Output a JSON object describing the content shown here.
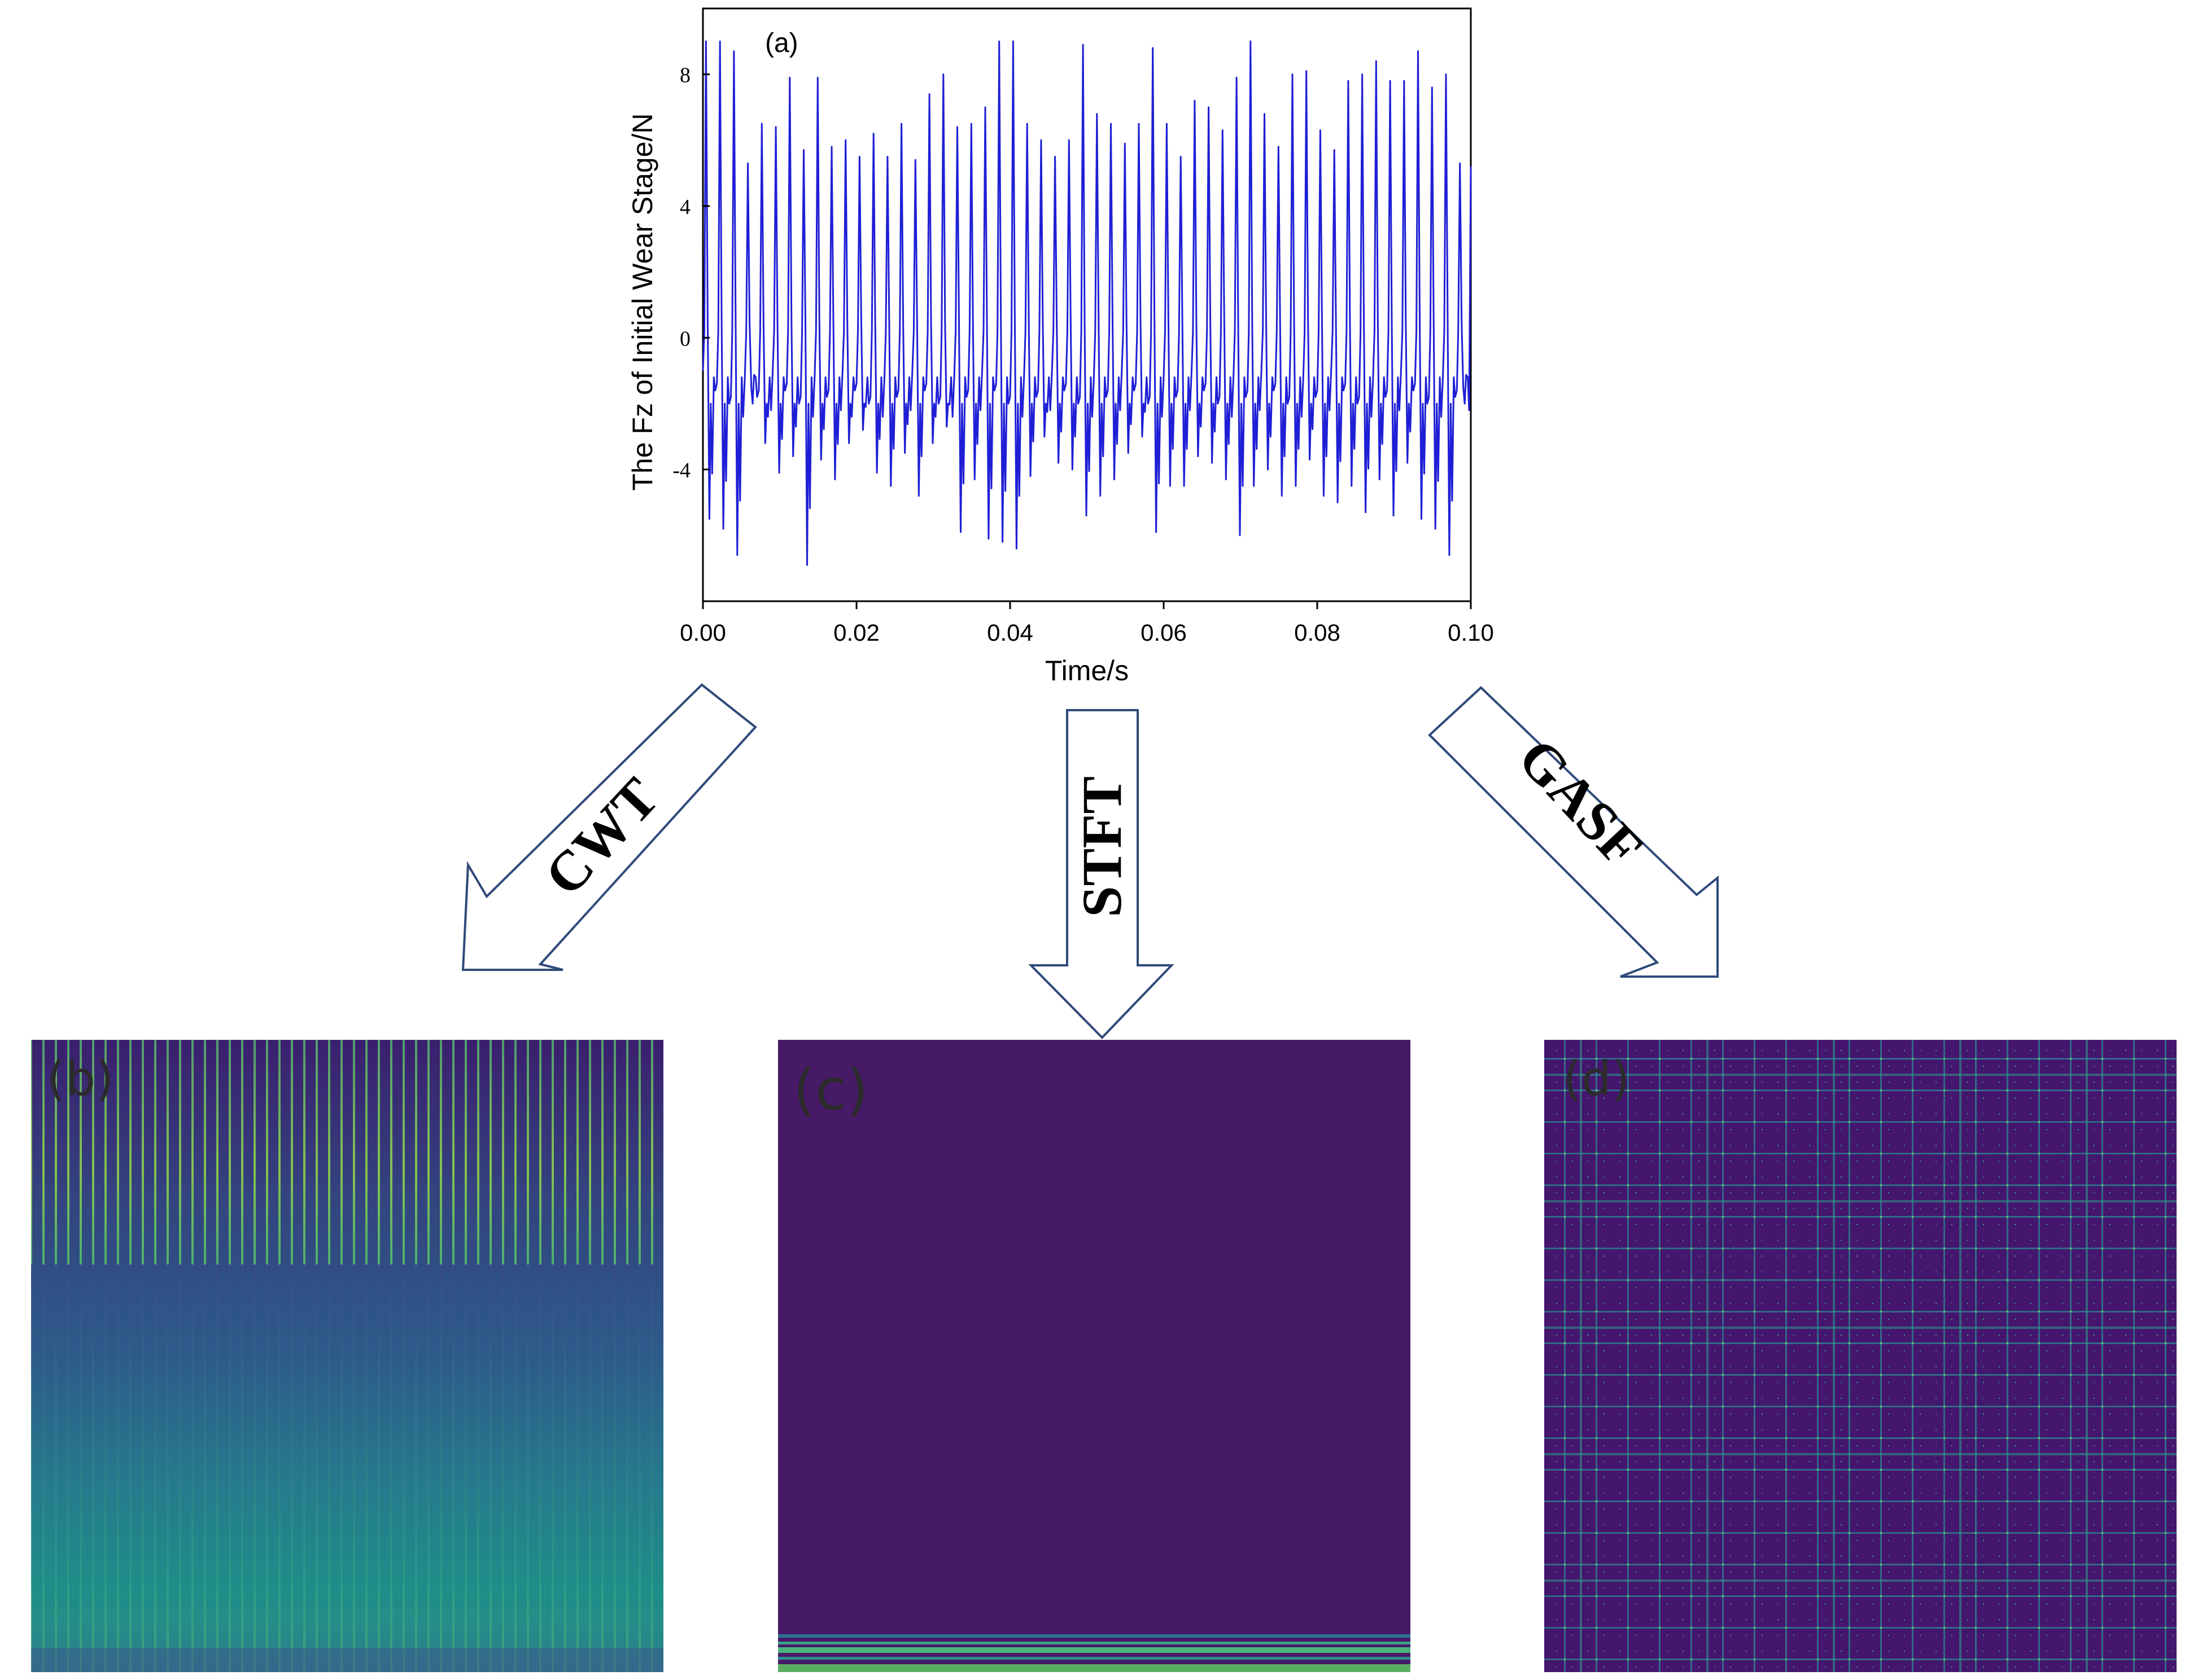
{
  "chart_data": {
    "type": "line",
    "panel_label": "(a)",
    "xlabel": "Time/s",
    "ylabel": "The Fz of Initial Wear Stage/N",
    "xlim": [
      0.0,
      0.1
    ],
    "ylim": [
      -8,
      10
    ],
    "x_ticks": [
      "0.00",
      "0.02",
      "0.04",
      "0.06",
      "0.08",
      "0.10"
    ],
    "y_ticks": [
      "8",
      "4",
      "0",
      "-4"
    ],
    "series": [
      {
        "name": "Fz",
        "color": "#1f1fd6",
        "peaks": [
          9.0,
          9.0,
          8.7,
          5.3,
          6.5,
          6.4,
          7.9,
          5.7,
          7.9,
          5.8,
          6.0,
          5.5,
          6.2,
          5.5,
          6.5,
          5.4,
          7.4,
          8.0,
          6.4,
          6.5,
          7.0,
          9.0,
          9.0,
          6.5,
          6.0,
          5.5,
          6.0,
          8.9,
          6.8,
          6.5,
          5.9,
          6.5,
          8.8,
          6.5,
          5.5,
          7.2,
          7.0,
          6.3,
          7.9,
          9.0,
          6.8,
          5.8,
          8.0,
          8.1,
          6.3,
          5.7,
          7.8,
          8.0,
          8.4,
          7.8,
          7.8,
          8.7,
          7.6,
          8.0,
          5.3
        ],
        "troughs": [
          -5.5,
          -5.8,
          -6.6,
          -1.5,
          -3.2,
          -4.1,
          -3.6,
          -6.9,
          -3.7,
          -4.3,
          -3.2,
          -2.8,
          -4.1,
          -4.5,
          -3.5,
          -4.8,
          -3.2,
          -2.7,
          -5.9,
          -4.3,
          -6.1,
          -6.2,
          -6.4,
          -4.2,
          -3.0,
          -3.8,
          -4.0,
          -5.4,
          -4.8,
          -4.3,
          -3.5,
          -3.0,
          -5.9,
          -4.5,
          -4.5,
          -3.6,
          -3.8,
          -4.3,
          -6.0,
          -4.5,
          -4.0,
          -4.8,
          -4.5,
          -3.7,
          -4.8,
          -5.0,
          -4.5,
          -5.3,
          -4.3,
          -5.4,
          -3.8
        ]
      }
    ]
  },
  "arrows": [
    {
      "label": "CWT"
    },
    {
      "label": "STFT"
    },
    {
      "label": "GASF"
    }
  ],
  "panels": [
    {
      "label": "(b)",
      "method": "CWT"
    },
    {
      "label": "(c)",
      "method": "STFT"
    },
    {
      "label": "(d)",
      "method": "GASF"
    }
  ],
  "colors": {
    "signal": "#1f1fd6",
    "viridis_dark": "#440f5c",
    "viridis_blue": "#2f6d8e",
    "viridis_teal": "#21918c",
    "viridis_green": "#5ec962",
    "viridis_yellow": "#c8e020",
    "arrow_stroke": "#2f4a7a"
  }
}
